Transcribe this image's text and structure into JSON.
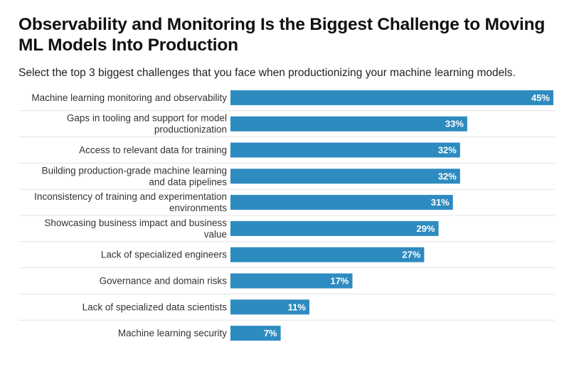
{
  "title": "Observability and Monitoring Is the Biggest Challenge to Moving ML Models Into Production",
  "subtitle": "Select the top 3 biggest challenges that you face when productionizing your machine learning models.",
  "colors": {
    "bar": "#2e8bc0",
    "divider": "#e3e3e3"
  },
  "chart_data": {
    "type": "bar",
    "orientation": "horizontal",
    "title": "Observability and Monitoring Is the Biggest Challenge to Moving ML Models Into Production",
    "subtitle": "Select the top 3 biggest challenges that you face when productionizing your machine learning models.",
    "categories": [
      [
        "Machine learning monitoring and observability"
      ],
      [
        "Gaps in tooling and support for model",
        "productionization"
      ],
      [
        "Access to relevant data for training"
      ],
      [
        "Building production-grade machine learning",
        "and data pipelines"
      ],
      [
        "Inconsistency of training and experimentation",
        "environments"
      ],
      [
        "Showcasing business impact and business",
        "value"
      ],
      [
        "Lack of specialized engineers"
      ],
      [
        "Governance and domain risks"
      ],
      [
        "Lack of specialized data scientists"
      ],
      [
        "Machine learning security"
      ]
    ],
    "values": [
      45,
      33,
      32,
      32,
      31,
      29,
      27,
      17,
      11,
      7
    ],
    "value_labels": [
      "45%",
      "33%",
      "32%",
      "32%",
      "31%",
      "29%",
      "27%",
      "17%",
      "11%",
      "7%"
    ],
    "xlim": [
      0,
      45
    ],
    "grid": false,
    "legend": "none"
  }
}
